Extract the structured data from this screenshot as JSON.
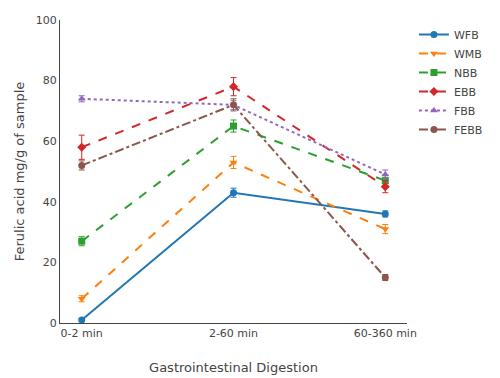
{
  "chart_data": {
    "type": "line",
    "categories": [
      "0-2 min",
      "2-60 min",
      "60-360 min"
    ],
    "series": [
      {
        "name": "WFB",
        "values": [
          1,
          43,
          36
        ],
        "errors": [
          0.5,
          1.5,
          1.0
        ],
        "line_style": "solid",
        "marker": "circle"
      },
      {
        "name": "WMB",
        "values": [
          8,
          53,
          31
        ],
        "errors": [
          1.0,
          2.0,
          1.5
        ],
        "line_style": "dashed",
        "marker": "triangle-down"
      },
      {
        "name": "NBB",
        "values": [
          27,
          65,
          47
        ],
        "errors": [
          1.5,
          2.0,
          2.0
        ],
        "line_style": "dashed",
        "marker": "square"
      },
      {
        "name": "EBB",
        "values": [
          58,
          78,
          45
        ],
        "errors": [
          4.0,
          3.0,
          2.0
        ],
        "line_style": "dashed",
        "marker": "diamond"
      },
      {
        "name": "FBB",
        "values": [
          74,
          72,
          49
        ],
        "errors": [
          1.0,
          1.5,
          1.5
        ],
        "line_style": "dotted",
        "marker": "triangle-up"
      },
      {
        "name": "FEBB",
        "values": [
          52,
          72,
          15
        ],
        "errors": [
          1.5,
          2.0,
          1.0
        ],
        "line_style": "dashdot",
        "marker": "circle"
      }
    ],
    "xlabel": "Gastrointestinal Digestion",
    "ylabel": "Ferulic acid mg/g of sample",
    "ylim": [
      0,
      100
    ],
    "yticks": [
      0,
      20,
      40,
      60,
      80,
      100
    ],
    "legend": "upper right",
    "grid": false
  }
}
